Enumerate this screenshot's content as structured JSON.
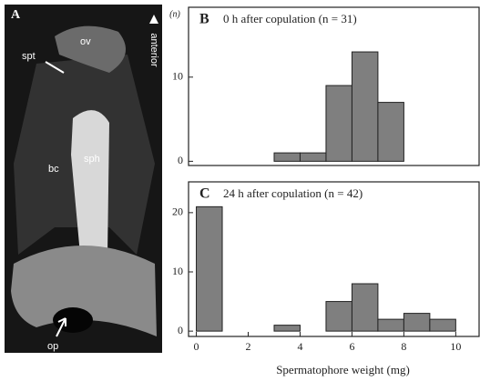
{
  "photo": {
    "panel": "A",
    "labels": [
      "ov",
      "anterior",
      "spt",
      "bc",
      "sph",
      "op"
    ]
  },
  "chart_data": [
    {
      "type": "histogram",
      "panel": "B",
      "title": "0 h after copulation (n = 31)",
      "ylabel": "(n)",
      "bins": [
        0,
        1,
        2,
        3,
        4,
        5,
        6,
        7,
        8,
        9,
        10
      ],
      "counts": [
        0,
        0,
        0,
        1,
        1,
        9,
        13,
        7,
        0,
        0
      ],
      "color": "#7f7f7f",
      "xlim": [
        -0.3,
        10.9
      ],
      "ylim": [
        -0.5,
        18.3
      ],
      "yticks": [
        0,
        10
      ]
    },
    {
      "type": "histogram",
      "panel": "C",
      "title": "24 h after copulation (n = 42)",
      "xlabel": "Spermatophore weight (mg)",
      "bins": [
        0,
        1,
        2,
        3,
        4,
        5,
        6,
        7,
        8,
        9,
        10
      ],
      "counts": [
        21,
        0,
        0,
        1,
        0,
        5,
        8,
        2,
        3,
        2
      ],
      "color": "#7f7f7f",
      "xlim": [
        -0.3,
        10.9
      ],
      "ylim": [
        -0.9,
        25.2
      ],
      "yticks": [
        0,
        10,
        20
      ],
      "xticks": [
        0,
        2,
        4,
        6,
        8,
        10
      ]
    }
  ]
}
